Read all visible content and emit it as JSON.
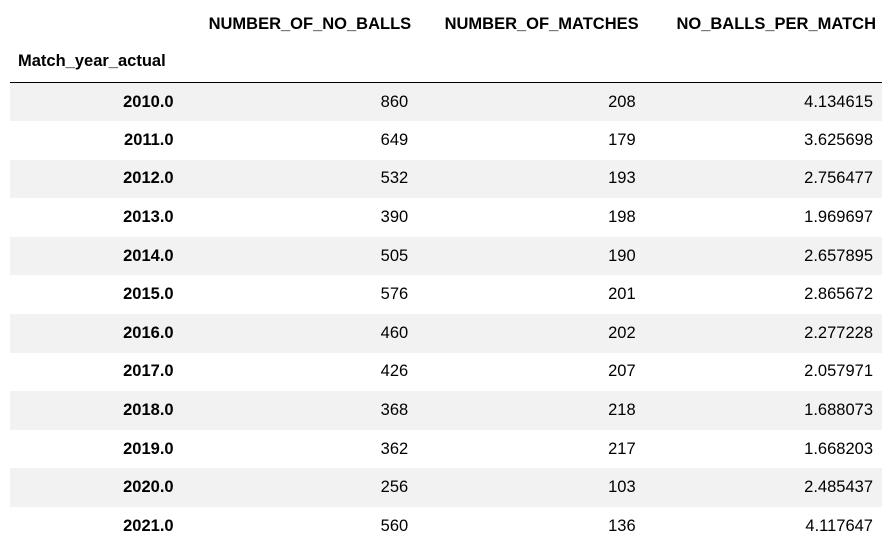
{
  "table": {
    "index_name": "Match_year_actual",
    "columns": [
      "NUMBER_OF_NO_BALLS",
      "NUMBER_OF_MATCHES",
      "NO_BALLS_PER_MATCH"
    ],
    "rows": [
      {
        "index": "2010.0",
        "values": [
          "860",
          "208",
          "4.134615"
        ]
      },
      {
        "index": "2011.0",
        "values": [
          "649",
          "179",
          "3.625698"
        ]
      },
      {
        "index": "2012.0",
        "values": [
          "532",
          "193",
          "2.756477"
        ]
      },
      {
        "index": "2013.0",
        "values": [
          "390",
          "198",
          "1.969697"
        ]
      },
      {
        "index": "2014.0",
        "values": [
          "505",
          "190",
          "2.657895"
        ]
      },
      {
        "index": "2015.0",
        "values": [
          "576",
          "201",
          "2.865672"
        ]
      },
      {
        "index": "2016.0",
        "values": [
          "460",
          "202",
          "2.277228"
        ]
      },
      {
        "index": "2017.0",
        "values": [
          "426",
          "207",
          "2.057971"
        ]
      },
      {
        "index": "2018.0",
        "values": [
          "368",
          "218",
          "1.688073"
        ]
      },
      {
        "index": "2019.0",
        "values": [
          "362",
          "217",
          "1.668203"
        ]
      },
      {
        "index": "2020.0",
        "values": [
          "256",
          "103",
          "2.485437"
        ]
      },
      {
        "index": "2021.0",
        "values": [
          "560",
          "136",
          "4.117647"
        ]
      }
    ]
  }
}
